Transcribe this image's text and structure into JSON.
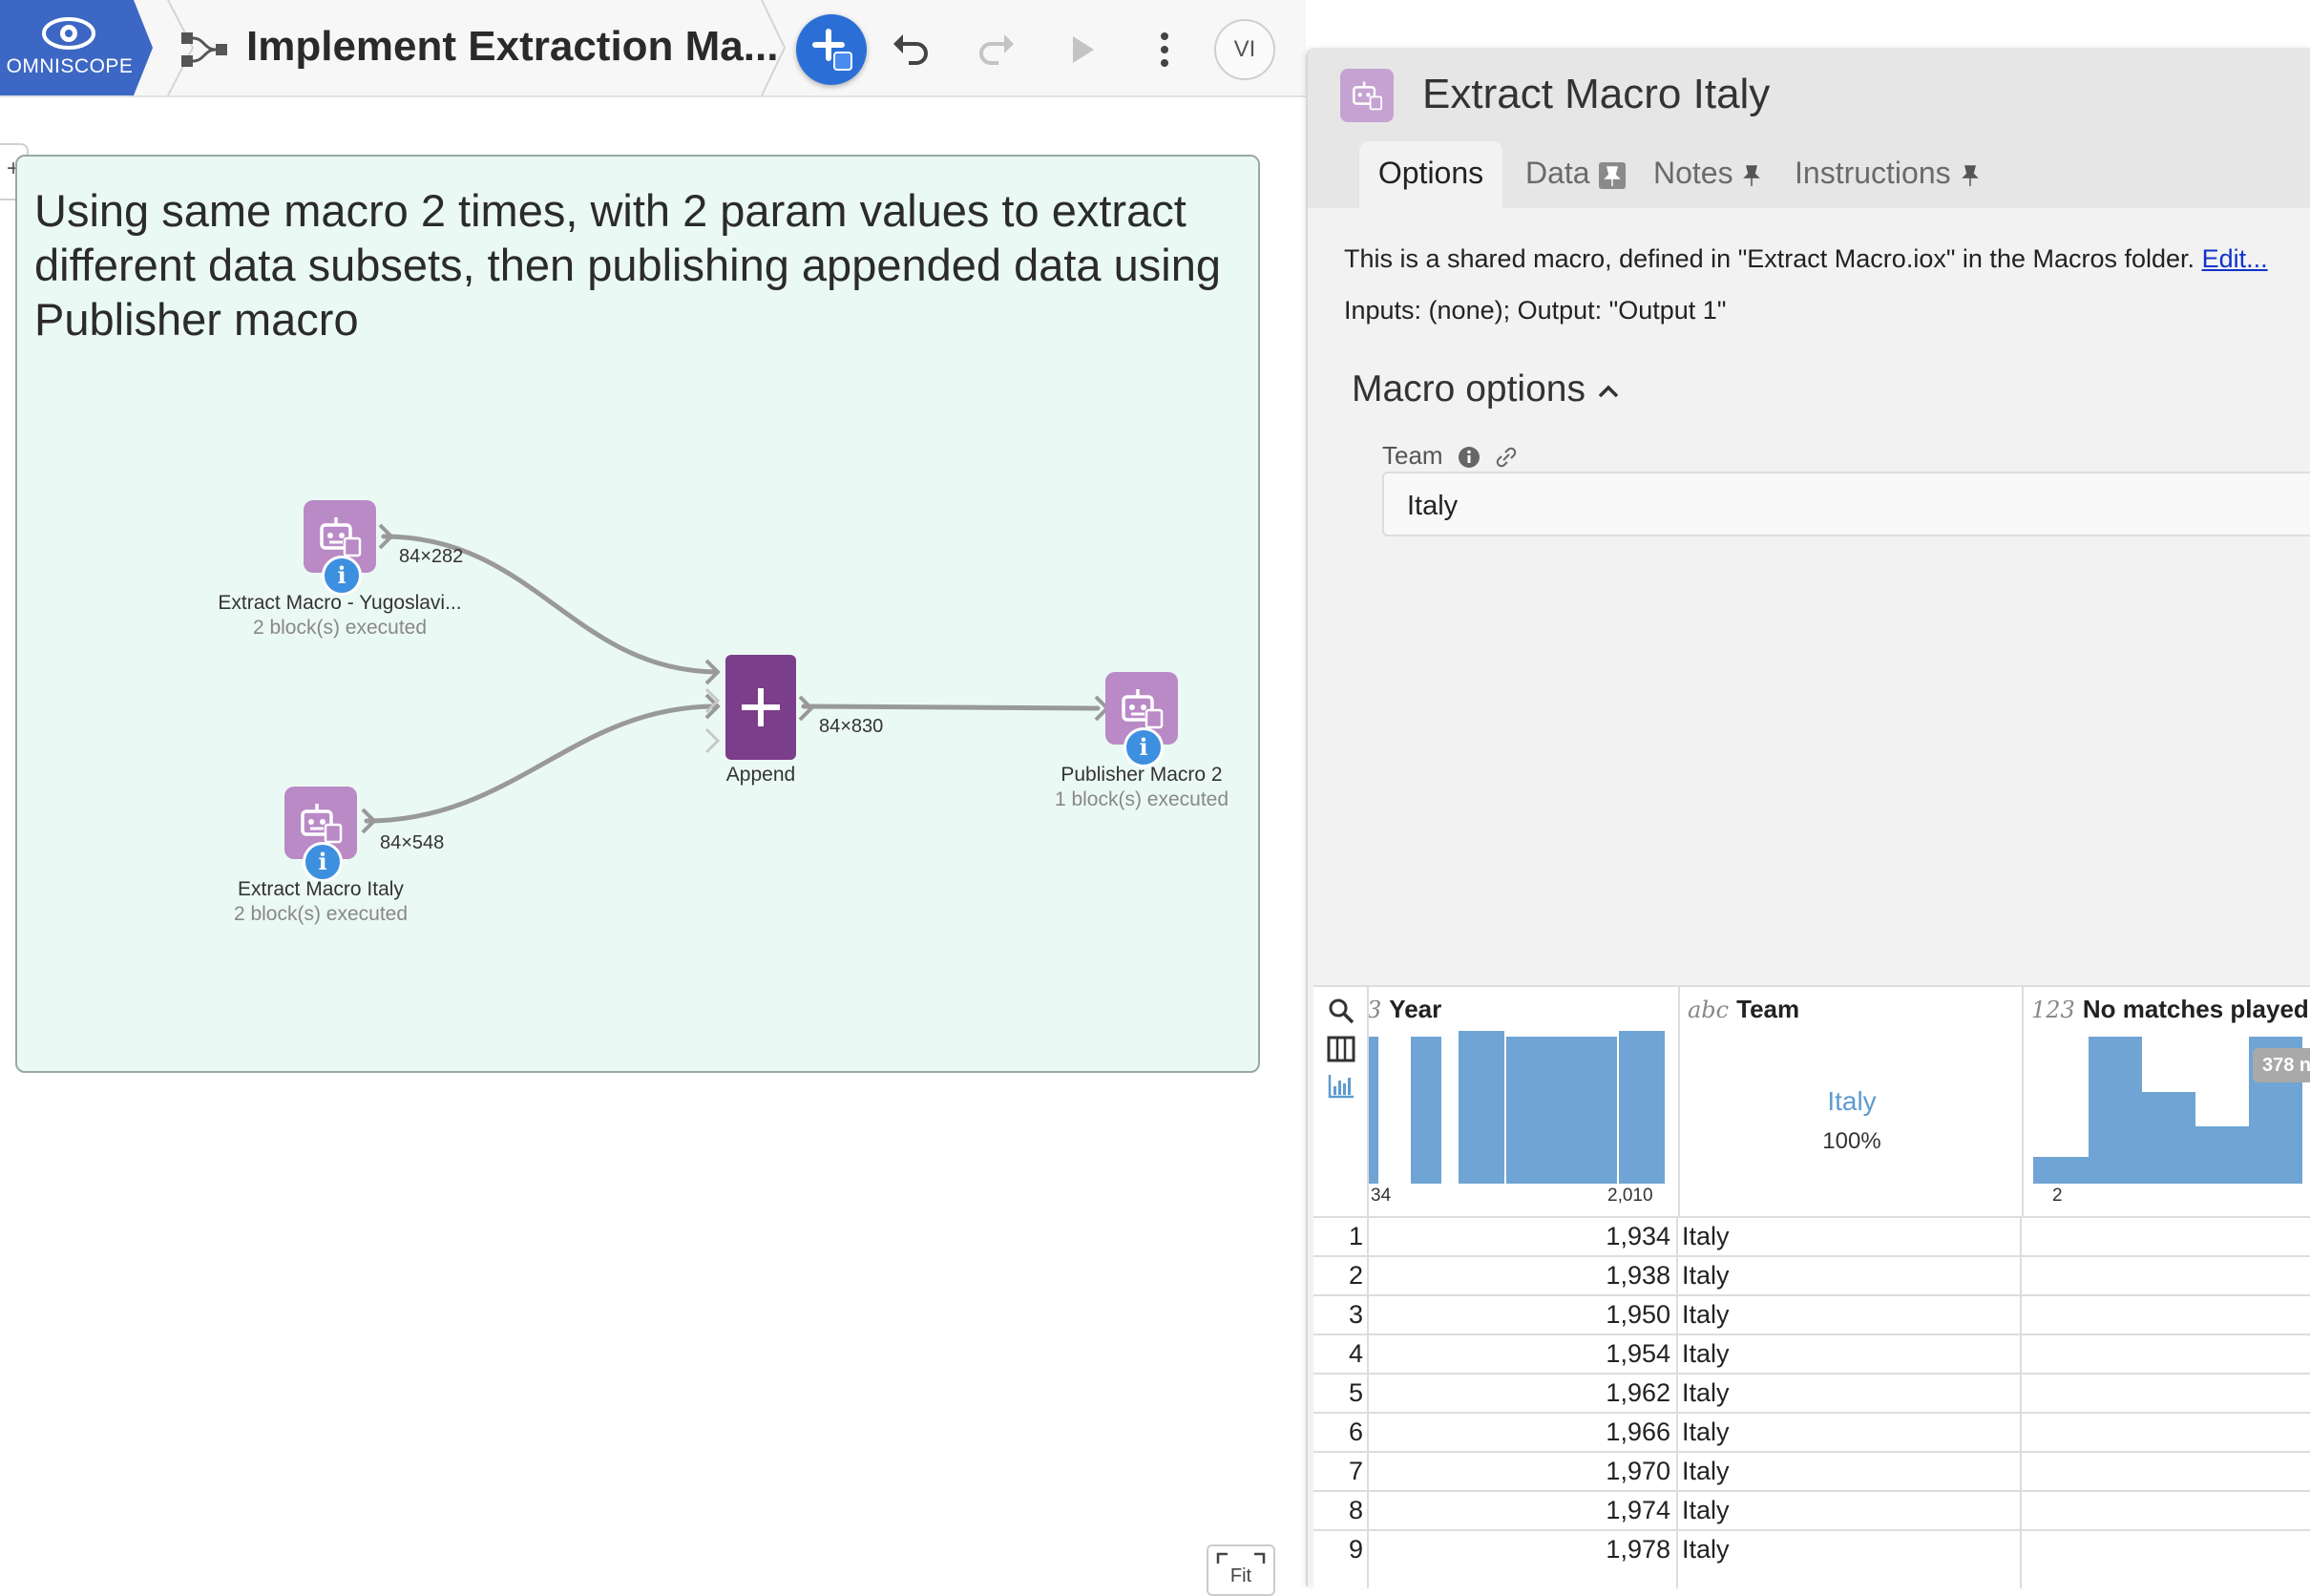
{
  "app": {
    "brand": "OMNISCOPE",
    "title": "Implement Extraction Ma...",
    "user_initials": "VI",
    "colors": {
      "brand": "#3d67c4",
      "accent": "#2b6fd6",
      "macro_block": "#b98ac6",
      "append_block": "#7b3e8a",
      "note_bg": "#ebf9f4"
    }
  },
  "toolbar": {
    "icons": [
      "flow-icon",
      "add-block-icon",
      "undo-icon",
      "redo-icon",
      "run-icon",
      "more-icon"
    ]
  },
  "canvas": {
    "note_text": "Using same macro 2 times, with 2 param values to extract different data subsets, then publishing appended data using Publisher macro",
    "fit_label": "Fit",
    "blocks": {
      "yugo": {
        "name": "Extract Macro - Yugoslavi...",
        "status": "2 block(s) executed",
        "rows": "84×282"
      },
      "italy": {
        "name": "Extract Macro Italy",
        "status": "2 block(s) executed",
        "rows": "84×548"
      },
      "append": {
        "name": "Append",
        "rows": "84×830"
      },
      "publisher": {
        "name": "Publisher Macro 2",
        "status": "1 block(s) executed"
      }
    }
  },
  "panel": {
    "title": "Extract Macro Italy",
    "tabs": {
      "options": "Options",
      "data": "Data",
      "notes": "Notes",
      "instructions": "Instructions"
    },
    "description_prefix": "This is a shared macro, defined in \"Extract Macro.iox\" in the Macros folder.",
    "edit_link": "Edit...",
    "io": "Inputs: (none); Output: \"Output 1\"",
    "macro_options_label": "Macro options",
    "team_label": "Team",
    "team_value": "Italy"
  },
  "grid": {
    "columns": [
      {
        "type": "3",
        "name": "Year",
        "axis_min": "34",
        "axis_max": "2,010"
      },
      {
        "type": "abc",
        "name": "Team",
        "category": "Italy",
        "percent": "100%"
      },
      {
        "type": "123",
        "name": "No matches played",
        "axis_min": "2",
        "badge": "378 n"
      }
    ],
    "rows": [
      {
        "n": "1",
        "year": "1,934",
        "team": "Italy"
      },
      {
        "n": "2",
        "year": "1,938",
        "team": "Italy"
      },
      {
        "n": "3",
        "year": "1,950",
        "team": "Italy"
      },
      {
        "n": "4",
        "year": "1,954",
        "team": "Italy"
      },
      {
        "n": "5",
        "year": "1,962",
        "team": "Italy"
      },
      {
        "n": "6",
        "year": "1,966",
        "team": "Italy"
      },
      {
        "n": "7",
        "year": "1,970",
        "team": "Italy"
      },
      {
        "n": "8",
        "year": "1,974",
        "team": "Italy"
      },
      {
        "n": "9",
        "year": "1,978",
        "team": "Italy"
      }
    ]
  }
}
